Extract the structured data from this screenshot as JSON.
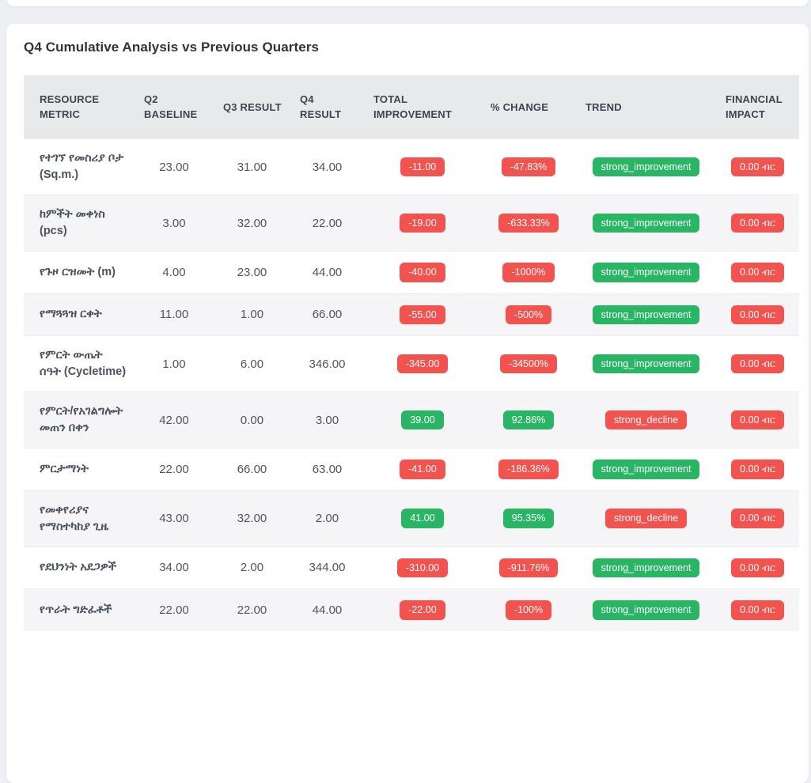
{
  "card": {
    "title": "Q4 Cumulative Analysis vs Previous Quarters"
  },
  "colors": {
    "red": "#f2534f",
    "green": "#28b665",
    "header_band": "#e8e9eb",
    "page_background": "#edeff2"
  },
  "table": {
    "columns": [
      "RESOURCE METRIC",
      "Q2 BASELINE",
      "Q3 RESULT",
      "Q4 RESULT",
      "TOTAL IMPROVEMENT",
      "% CHANGE",
      "TREND",
      "FINANCIAL IMPACT"
    ],
    "rows": [
      {
        "metric": "የተገኘ የመስሪያ ቦታ (Sq.m.)",
        "q2": "23.00",
        "q3": "31.00",
        "q4": "34.00",
        "improvement": "-11.00",
        "improvement_color": "red",
        "change": "-47.83%",
        "change_color": "red",
        "trend": "strong_improvement",
        "trend_color": "green",
        "impact": "0.00 ብር",
        "impact_color": "red"
      },
      {
        "metric": "ከምችት መቀነስ (pcs)",
        "q2": "3.00",
        "q3": "32.00",
        "q4": "22.00",
        "improvement": "-19.00",
        "improvement_color": "red",
        "change": "-633.33%",
        "change_color": "red",
        "trend": "strong_improvement",
        "trend_color": "green",
        "impact": "0.00 ብር",
        "impact_color": "red"
      },
      {
        "metric": "የጉዞ ርዝመት (m)",
        "q2": "4.00",
        "q3": "23.00",
        "q4": "44.00",
        "improvement": "-40.00",
        "improvement_color": "red",
        "change": "-1000%",
        "change_color": "red",
        "trend": "strong_improvement",
        "trend_color": "green",
        "impact": "0.00 ብር",
        "impact_color": "red"
      },
      {
        "metric": "የማጓጓዝ ርቀት",
        "q2": "11.00",
        "q3": "1.00",
        "q4": "66.00",
        "improvement": "-55.00",
        "improvement_color": "red",
        "change": "-500%",
        "change_color": "red",
        "trend": "strong_improvement",
        "trend_color": "green",
        "impact": "0.00 ብር",
        "impact_color": "red"
      },
      {
        "metric": "የምርት ውጤት ሰዓት (Cycletime)",
        "q2": "1.00",
        "q3": "6.00",
        "q4": "346.00",
        "improvement": "-345.00",
        "improvement_color": "red",
        "change": "-34500%",
        "change_color": "red",
        "trend": "strong_improvement",
        "trend_color": "green",
        "impact": "0.00 ብር",
        "impact_color": "red"
      },
      {
        "metric": "የምርት/የአገልግሎት መጠን በቀን",
        "q2": "42.00",
        "q3": "0.00",
        "q4": "3.00",
        "improvement": "39.00",
        "improvement_color": "green",
        "change": "92.86%",
        "change_color": "green",
        "trend": "strong_decline",
        "trend_color": "red",
        "impact": "0.00 ብር",
        "impact_color": "red"
      },
      {
        "metric": "ምርታማነት",
        "q2": "22.00",
        "q3": "66.00",
        "q4": "63.00",
        "improvement": "-41.00",
        "improvement_color": "red",
        "change": "-186.36%",
        "change_color": "red",
        "trend": "strong_improvement",
        "trend_color": "green",
        "impact": "0.00 ብር",
        "impact_color": "red"
      },
      {
        "metric": "የመቀየሪያና የማስተካከያ ጊዜ",
        "q2": "43.00",
        "q3": "32.00",
        "q4": "2.00",
        "improvement": "41.00",
        "improvement_color": "green",
        "change": "95.35%",
        "change_color": "green",
        "trend": "strong_decline",
        "trend_color": "red",
        "impact": "0.00 ብር",
        "impact_color": "red"
      },
      {
        "metric": "የደህንነት አደጋዎች",
        "q2": "34.00",
        "q3": "2.00",
        "q4": "344.00",
        "improvement": "-310.00",
        "improvement_color": "red",
        "change": "-911.76%",
        "change_color": "red",
        "trend": "strong_improvement",
        "trend_color": "green",
        "impact": "0.00 ብር",
        "impact_color": "red"
      },
      {
        "metric": "የጥራት ግድፈቶች",
        "q2": "22.00",
        "q3": "22.00",
        "q4": "44.00",
        "improvement": "-22.00",
        "improvement_color": "red",
        "change": "-100%",
        "change_color": "red",
        "trend": "strong_improvement",
        "trend_color": "green",
        "impact": "0.00 ብር",
        "impact_color": "red"
      }
    ]
  }
}
